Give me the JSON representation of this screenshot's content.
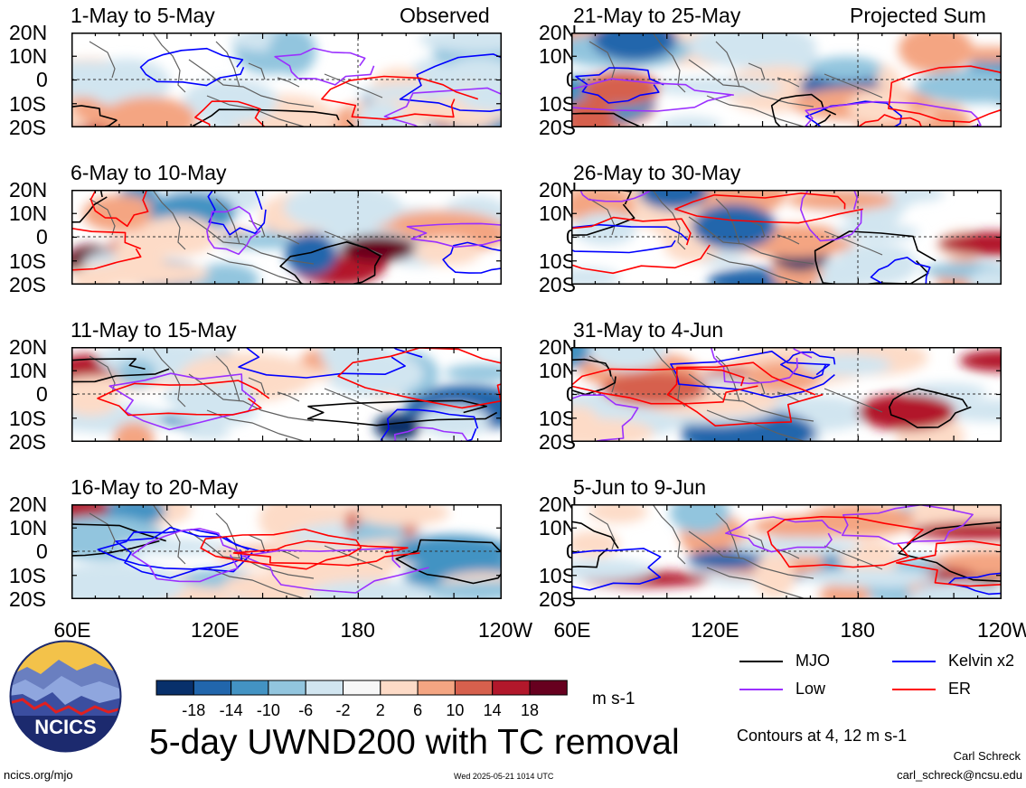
{
  "panels": [
    {
      "title": "1-May to 5-May",
      "tag": "Observed"
    },
    {
      "title": "21-May to 25-May",
      "tag": "Projected Sum"
    },
    {
      "title": "6-May to 10-May",
      "tag": ""
    },
    {
      "title": "26-May to 30-May",
      "tag": ""
    },
    {
      "title": "11-May to 15-May",
      "tag": ""
    },
    {
      "title": "31-May to 4-Jun",
      "tag": ""
    },
    {
      "title": "16-May to 20-May",
      "tag": ""
    },
    {
      "title": "5-Jun to 9-Jun",
      "tag": ""
    }
  ],
  "lat_labels": [
    "20N",
    "10N",
    "0",
    "10S",
    "20S"
  ],
  "lon_labels": [
    "60E",
    "120E",
    "180",
    "120W"
  ],
  "colorbar": {
    "labels": [
      "-18",
      "-14",
      "-10",
      "-6",
      "-2",
      "2",
      "6",
      "10",
      "14",
      "18"
    ],
    "colors": [
      "#08306b",
      "#2166ac",
      "#4393c3",
      "#92c5de",
      "#d1e5f0",
      "#f7f7f7",
      "#fddbc7",
      "#f4a582",
      "#d6604d",
      "#b2182b",
      "#67001f"
    ],
    "units": "m s-1"
  },
  "legend": [
    {
      "label": "MJO",
      "color": "#000000"
    },
    {
      "label": "Kelvin x2",
      "color": "#0000ff"
    },
    {
      "label": "Low",
      "color": "#9b30ff"
    },
    {
      "label": "ER",
      "color": "#ff0000"
    }
  ],
  "main_title": "5-day UWND200 with TC removal",
  "contours_note": "Contours at 4, 12 m s-1",
  "logo_text": "NCICS",
  "footer": {
    "url": "ncics.org/mjo",
    "timestamp": "Wed 2025-05-21 1014 UTC",
    "author": "Carl Schreck",
    "email": "carl_schreck@ncsu.edu"
  }
}
